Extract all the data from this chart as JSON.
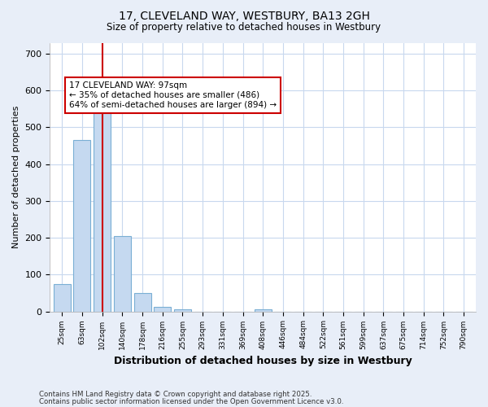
{
  "title1": "17, CLEVELAND WAY, WESTBURY, BA13 2GH",
  "title2": "Size of property relative to detached houses in Westbury",
  "xlabel": "Distribution of detached houses by size in Westbury",
  "ylabel": "Number of detached properties",
  "categories": [
    "25sqm",
    "63sqm",
    "102sqm",
    "140sqm",
    "178sqm",
    "216sqm",
    "255sqm",
    "293sqm",
    "331sqm",
    "369sqm",
    "408sqm",
    "446sqm",
    "484sqm",
    "522sqm",
    "561sqm",
    "599sqm",
    "637sqm",
    "675sqm",
    "714sqm",
    "752sqm",
    "790sqm"
  ],
  "values": [
    75,
    465,
    565,
    205,
    50,
    12,
    5,
    0,
    0,
    0,
    5,
    0,
    0,
    0,
    0,
    0,
    0,
    0,
    0,
    0,
    0
  ],
  "bar_color": "#c5d9f0",
  "bar_edge_color": "#7aafd4",
  "highlight_index": 2,
  "highlight_color": "#cc0000",
  "ylim": [
    0,
    730
  ],
  "yticks": [
    0,
    100,
    200,
    300,
    400,
    500,
    600,
    700
  ],
  "annotation_text": "17 CLEVELAND WAY: 97sqm\n← 35% of detached houses are smaller (486)\n64% of semi-detached houses are larger (894) →",
  "annotation_box_color": "#ffffff",
  "annotation_box_edge_color": "#cc0000",
  "footnote1": "Contains HM Land Registry data © Crown copyright and database right 2025.",
  "footnote2": "Contains public sector information licensed under the Open Government Licence v3.0.",
  "bg_color": "#e8eef8",
  "plot_bg_color": "#ffffff",
  "grid_color": "#c8d8ee"
}
